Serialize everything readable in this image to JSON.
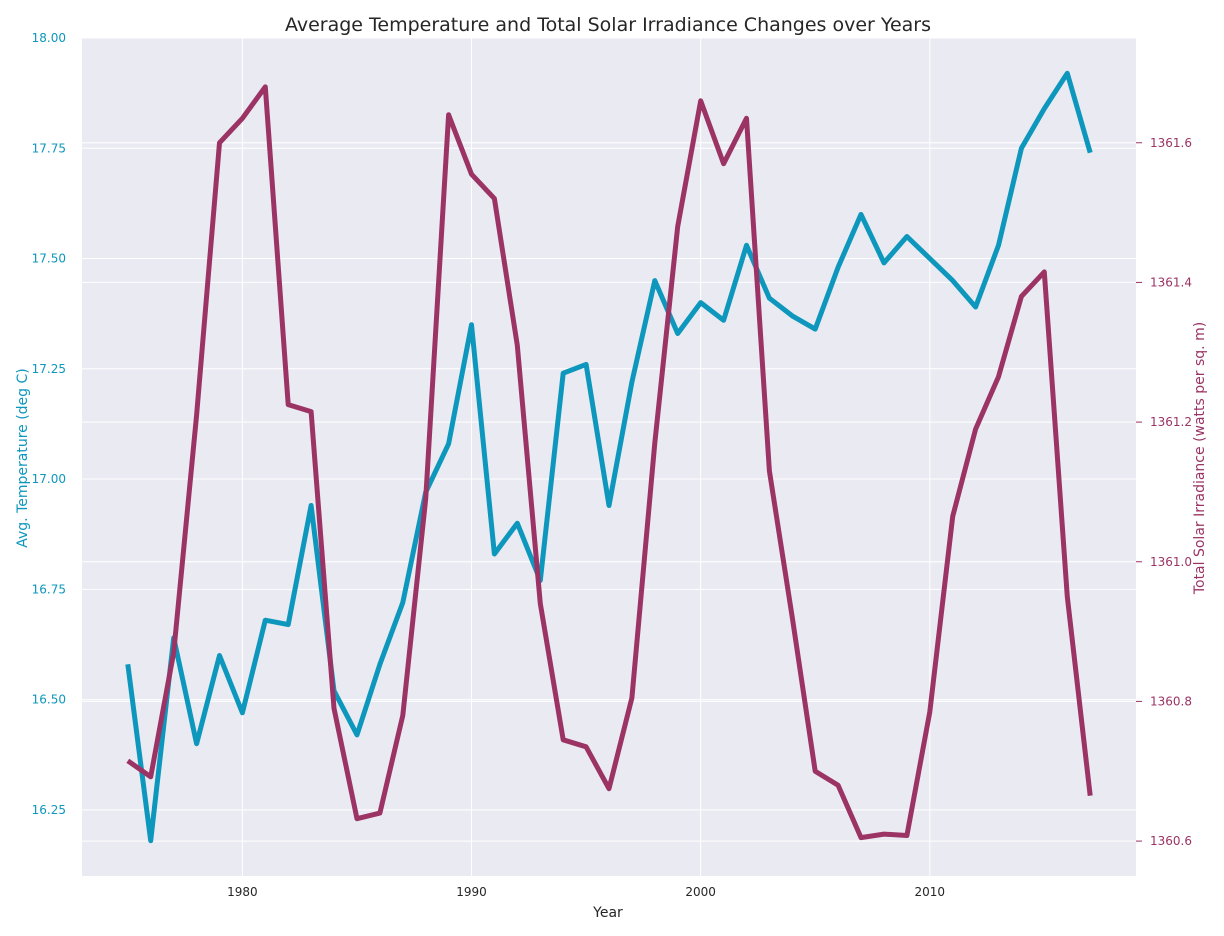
{
  "chart_data": {
    "type": "line",
    "title": "Average Temperature and Total Solar Irradiance Changes over Years",
    "xlabel": "Year",
    "ylabel_left": "Avg. Temperature (deg C)",
    "ylabel_right": "Total Solar Irradiance (watts per sq. m)",
    "xlim": [
      1973,
      2019
    ],
    "ylim_left": [
      16.1,
      18.0
    ],
    "ylim_right": [
      1360.55,
      1361.75
    ],
    "x_ticks": [
      1980,
      1990,
      2000,
      2010
    ],
    "y_ticks_left": [
      "16.25",
      "16.50",
      "16.75",
      "17.00",
      "17.25",
      "17.50",
      "17.75",
      "18.00"
    ],
    "y_ticks_right": [
      "1360.6",
      "1360.8",
      "1361.0",
      "1361.2",
      "1361.4",
      "1361.6"
    ],
    "grid": true,
    "x": [
      1975,
      1976,
      1977,
      1978,
      1979,
      1980,
      1981,
      1982,
      1983,
      1984,
      1985,
      1986,
      1987,
      1988,
      1989,
      1990,
      1991,
      1992,
      1993,
      1994,
      1995,
      1996,
      1997,
      1998,
      1999,
      2000,
      2001,
      2002,
      2003,
      2004,
      2005,
      2006,
      2007,
      2008,
      2009,
      2010,
      2011,
      2012,
      2013,
      2014,
      2015,
      2016,
      2017
    ],
    "series": [
      {
        "name": "Avg. Temperature (deg C)",
        "axis": "left",
        "color": "#0e97bd",
        "values": [
          16.58,
          16.18,
          16.64,
          16.4,
          16.6,
          16.47,
          16.68,
          16.67,
          16.94,
          16.52,
          16.42,
          16.58,
          16.72,
          16.97,
          17.08,
          17.35,
          16.83,
          16.9,
          16.77,
          17.24,
          17.26,
          16.94,
          17.22,
          17.45,
          17.33,
          17.4,
          17.36,
          17.53,
          17.41,
          17.37,
          17.34,
          17.48,
          17.6,
          17.49,
          17.55,
          17.5,
          17.45,
          17.39,
          17.53,
          17.75,
          17.84,
          17.92,
          17.74
        ]
      },
      {
        "name": "Total Solar Irradiance (watts per sq. m)",
        "axis": "right",
        "color": "#9b3464",
        "values": [
          1360.715,
          1360.692,
          1360.87,
          1361.21,
          1361.6,
          1361.635,
          1361.68,
          1361.225,
          1361.215,
          1360.79,
          1360.632,
          1360.64,
          1360.78,
          1361.09,
          1361.64,
          1361.555,
          1361.52,
          1361.31,
          1360.94,
          1360.745,
          1360.735,
          1360.675,
          1360.805,
          1361.17,
          1361.48,
          1361.66,
          1361.57,
          1361.635,
          1361.13,
          1360.92,
          1360.7,
          1360.68,
          1360.605,
          1360.61,
          1360.608,
          1360.785,
          1361.065,
          1361.19,
          1361.265,
          1361.38,
          1361.415,
          1360.95,
          1360.665
        ]
      }
    ]
  }
}
